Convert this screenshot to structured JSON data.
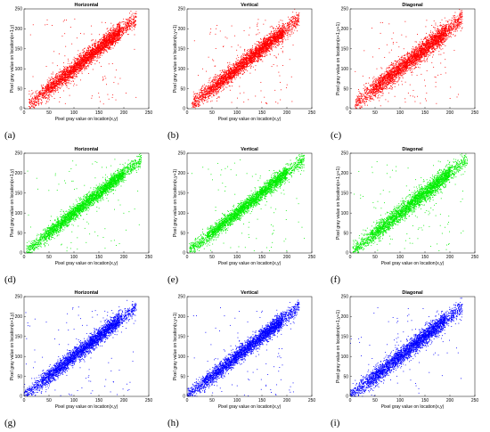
{
  "chart_data": [
    {
      "letter": "(a)",
      "type": "scatter",
      "title": "Horizontal",
      "xlabel": "Pixel gray value on location(x,y)",
      "ylabel": "Pixel gray value on location(x+1,y)",
      "xlim": [
        0,
        250
      ],
      "ylim": [
        0,
        250
      ],
      "xticks": [
        0,
        50,
        100,
        150,
        200,
        250
      ],
      "yticks": [
        0,
        50,
        100,
        150,
        200,
        250
      ],
      "color": "#ff0000",
      "data_range": [
        10,
        225
      ],
      "trend": {
        "slope": 1.0,
        "intercept": 0
      },
      "spread": 13,
      "points": 3600
    },
    {
      "letter": "(b)",
      "type": "scatter",
      "title": "Vertical",
      "xlabel": "Pixel gray value on location(x,y)",
      "ylabel": "Pixel gray value on location(x,y+1)",
      "xlim": [
        0,
        250
      ],
      "ylim": [
        0,
        250
      ],
      "xticks": [
        0,
        50,
        100,
        150,
        200,
        250
      ],
      "yticks": [
        0,
        50,
        100,
        150,
        200,
        250
      ],
      "color": "#ff0000",
      "data_range": [
        10,
        225
      ],
      "trend": {
        "slope": 1.0,
        "intercept": 0
      },
      "spread": 13,
      "points": 3600
    },
    {
      "letter": "(c)",
      "type": "scatter",
      "title": "Diagonal",
      "xlabel": "",
      "ylabel": "Pixel gray value on location(x+1,y+1)",
      "xlim": [
        0,
        250
      ],
      "ylim": [
        0,
        250
      ],
      "xticks": [
        0,
        50,
        100,
        150,
        200,
        250
      ],
      "yticks": [
        0,
        50,
        100,
        150,
        200,
        250
      ],
      "color": "#ff0000",
      "data_range": [
        10,
        225
      ],
      "trend": {
        "slope": 1.0,
        "intercept": 0
      },
      "spread": 15,
      "points": 3600
    },
    {
      "letter": "(d)",
      "type": "scatter",
      "title": "Horizontal",
      "xlabel": "Pixel gray value on location(x,y)",
      "ylabel": "Pixel gray value on location(x+1,y)",
      "xlim": [
        0,
        250
      ],
      "ylim": [
        0,
        250
      ],
      "xticks": [
        0,
        50,
        100,
        150,
        200,
        250
      ],
      "yticks": [
        0,
        50,
        100,
        150,
        200,
        250
      ],
      "color": "#00ee00",
      "data_range": [
        5,
        235
      ],
      "trend": {
        "slope": 1.0,
        "intercept": 0
      },
      "spread": 11,
      "points": 3400
    },
    {
      "letter": "(e)",
      "type": "scatter",
      "title": "Vertical",
      "xlabel": "Pixel gray value on location(x,y)",
      "ylabel": "Pixel gray value on location(x,y+1)",
      "xlim": [
        0,
        250
      ],
      "ylim": [
        0,
        250
      ],
      "xticks": [
        0,
        50,
        100,
        150,
        200,
        250
      ],
      "yticks": [
        0,
        50,
        100,
        150,
        200,
        250
      ],
      "color": "#00ee00",
      "data_range": [
        5,
        235
      ],
      "trend": {
        "slope": 1.0,
        "intercept": 0
      },
      "spread": 11,
      "points": 3400
    },
    {
      "letter": "(f)",
      "type": "scatter",
      "title": "Diagonal",
      "xlabel": "Pixel gray value on location(x,y)",
      "ylabel": "Pixel gray value on location(x+1,y+1)",
      "xlim": [
        0,
        250
      ],
      "ylim": [
        0,
        250
      ],
      "xticks": [
        0,
        50,
        100,
        150,
        200,
        250
      ],
      "yticks": [
        0,
        50,
        100,
        150,
        200,
        250
      ],
      "color": "#00ee00",
      "data_range": [
        5,
        235
      ],
      "trend": {
        "slope": 1.0,
        "intercept": 0
      },
      "spread": 13,
      "points": 3400
    },
    {
      "letter": "(g)",
      "type": "scatter",
      "title": "Horizontal",
      "xlabel": "Pixel gray value on location(x,y)",
      "ylabel": "Pixel gray value on location(x+1,y)",
      "xlim": [
        0,
        250
      ],
      "ylim": [
        0,
        250
      ],
      "xticks": [
        0,
        50,
        100,
        150,
        200,
        250
      ],
      "yticks": [
        0,
        50,
        100,
        150,
        200,
        250
      ],
      "color": "#0000ff",
      "data_range": [
        0,
        225
      ],
      "trend": {
        "slope": 1.0,
        "intercept": 0
      },
      "spread": 12,
      "points": 3400
    },
    {
      "letter": "(h)",
      "type": "scatter",
      "title": "Vertical",
      "xlabel": "Pixel gray value on location(x,y)",
      "ylabel": "Pixel gray value on location(x,y+1)",
      "xlim": [
        0,
        250
      ],
      "ylim": [
        0,
        250
      ],
      "xticks": [
        0,
        50,
        100,
        150,
        200,
        250
      ],
      "yticks": [
        0,
        50,
        100,
        150,
        200,
        250
      ],
      "color": "#0000ff",
      "data_range": [
        0,
        225
      ],
      "trend": {
        "slope": 1.0,
        "intercept": 0
      },
      "spread": 12,
      "points": 3400
    },
    {
      "letter": "(i)",
      "type": "scatter",
      "title": "Diagonal",
      "xlabel": "Pixel gray value on location(x,y)",
      "ylabel": "Pixel gray value on location(x+1,y+1)",
      "xlim": [
        0,
        250
      ],
      "ylim": [
        0,
        250
      ],
      "xticks": [
        0,
        50,
        100,
        150,
        200,
        250
      ],
      "yticks": [
        0,
        50,
        100,
        150,
        200,
        250
      ],
      "color": "#0000ff",
      "data_range": [
        0,
        225
      ],
      "trend": {
        "slope": 1.0,
        "intercept": 0
      },
      "spread": 14,
      "points": 3400
    }
  ]
}
